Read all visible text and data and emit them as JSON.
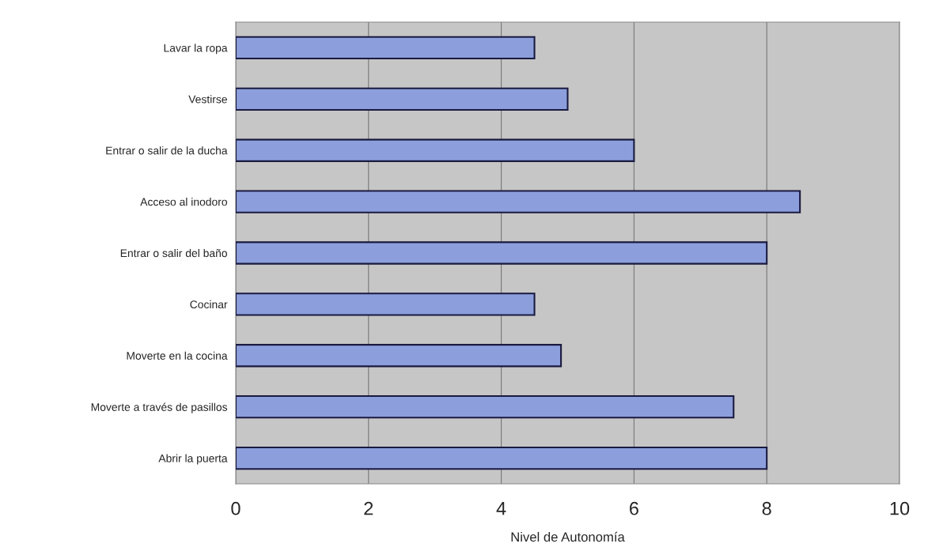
{
  "chart_data": {
    "type": "bar",
    "orientation": "horizontal",
    "xlabel": "Nivel de Autonomía",
    "categories": [
      "Lavar la ropa",
      "Vestirse",
      "Entrar o salir de la ducha",
      "Acceso al inodoro",
      "Entrar o salir del baño",
      "Cocinar",
      "Moverte en la cocina",
      "Moverte a través de pasillos",
      "Abrir la puerta"
    ],
    "values": [
      4.5,
      5,
      6,
      8.5,
      8,
      4.5,
      4.9,
      7.5,
      8
    ],
    "color": "#8c9fdc",
    "xlim": [
      0,
      10
    ],
    "xticks": [
      0,
      2,
      4,
      6,
      8,
      10
    ],
    "grid": "x"
  }
}
